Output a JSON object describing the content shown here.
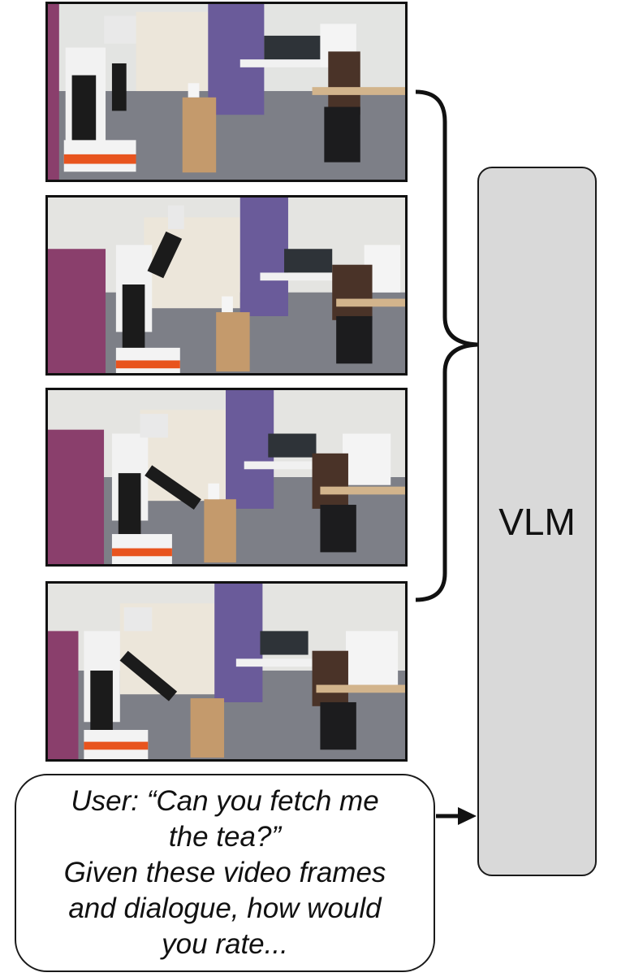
{
  "vlm": {
    "label": "VLM"
  },
  "prompt": {
    "lines": [
      "User: “Can you fetch me",
      "the tea?”",
      "Given these video frames",
      "and dialogue, how would",
      "you rate..."
    ]
  },
  "frames": [
    {
      "name": "video-frame-1",
      "arm_pose": "raised"
    },
    {
      "name": "video-frame-2",
      "arm_pose": "lifting"
    },
    {
      "name": "video-frame-3",
      "arm_pose": "reaching"
    },
    {
      "name": "video-frame-4",
      "arm_pose": "lowered"
    }
  ],
  "colors": {
    "vlm_fill": "#d9d9d9",
    "purple_wall": "#6a5b9a",
    "robot_orange": "#e8541e",
    "box_brown": "#c49a6c"
  }
}
